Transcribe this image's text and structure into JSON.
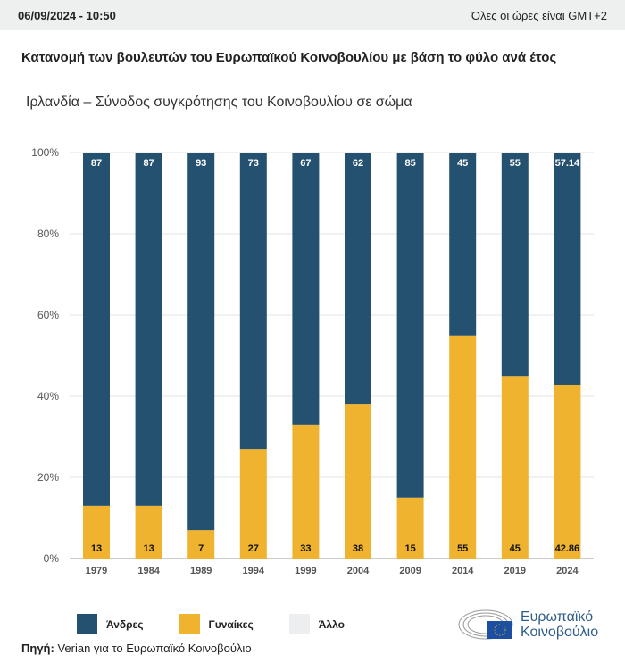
{
  "header": {
    "datetime": "06/09/2024 - 10:50",
    "timezone": "Όλες οι ώρες είναι GMT+2"
  },
  "title": "Κατανομή των βουλευτών του Ευρωπαϊκού Κοινοβουλίου με βάση το φύλο ανά έτος",
  "subtitle": "Ιρλανδία – Σύνοδος συγκρότησης του Κοινοβουλίου σε σώμα",
  "source_label": "Πηγή:",
  "source_text": " Verian για το Ευρωπαϊκό Κοινοβούλιο",
  "logo": {
    "line1": "Ευρωπαϊκό",
    "line2": "Κοινοβούλιο"
  },
  "colors": {
    "men": "#24516f",
    "women": "#efb330",
    "other": "#eceef0"
  },
  "chart_data": {
    "type": "bar",
    "stacked": true,
    "categories": [
      "1979",
      "1984",
      "1989",
      "1994",
      "1999",
      "2004",
      "2009",
      "2014",
      "2019",
      "2024"
    ],
    "series": [
      {
        "name": "Άνδρες",
        "values": [
          87,
          87,
          93,
          73,
          67,
          62,
          85,
          45,
          55,
          57.14
        ]
      },
      {
        "name": "Γυναίκες",
        "values": [
          13,
          13,
          7,
          27,
          33,
          38,
          15,
          55,
          45,
          42.86
        ]
      },
      {
        "name": "Άλλο",
        "values": [
          0,
          0,
          0,
          0,
          0,
          0,
          0,
          0,
          0,
          0
        ]
      }
    ],
    "ylim": [
      0,
      100
    ],
    "yticks": [
      "0%",
      "20%",
      "40%",
      "60%",
      "80%",
      "100%"
    ],
    "legend": "bottom",
    "grid": true
  }
}
